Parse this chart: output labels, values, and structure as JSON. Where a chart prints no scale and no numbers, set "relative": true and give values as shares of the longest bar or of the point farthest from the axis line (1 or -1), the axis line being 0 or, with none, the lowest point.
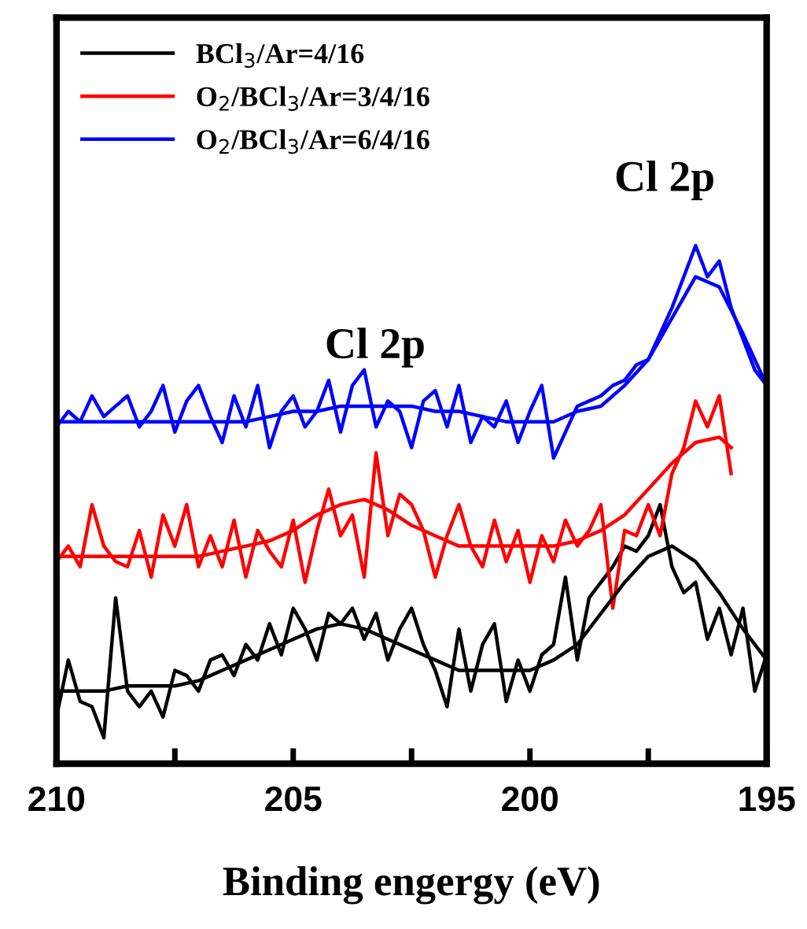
{
  "chart_data": {
    "type": "line",
    "relative": true,
    "xlabel": "Binding engergy (eV)",
    "xlim": [
      210,
      195
    ],
    "xticks": [
      210,
      {
        "value": 207.5,
        "label": null
      },
      205,
      {
        "value": 202.5,
        "label": null
      },
      200,
      {
        "value": 197.5,
        "label": null
      },
      195
    ],
    "tick_labels": "x",
    "legend": "top left",
    "grid": false,
    "marker": "none",
    "line_style": "solid",
    "annotations": [
      {
        "text": "Cl 2p",
        "x": 203.5,
        "y": 0.69
      },
      {
        "text": "Cl 2p",
        "x": 196.6,
        "y": 1.0
      }
    ],
    "x": [
      210,
      209.75,
      209.5,
      209.25,
      209,
      208.75,
      208.5,
      208.25,
      208,
      207.75,
      207.5,
      207.25,
      207,
      206.75,
      206.5,
      206.25,
      206,
      205.75,
      205.5,
      205.25,
      205,
      204.75,
      204.5,
      204.25,
      204,
      203.75,
      203.5,
      203.25,
      203,
      202.75,
      202.5,
      202.25,
      202,
      201.75,
      201.5,
      201.25,
      201,
      200.75,
      200.5,
      200.25,
      200,
      199.75,
      199.5,
      199.25,
      199,
      198.75,
      198.5,
      198.25,
      198,
      197.75,
      197.5,
      197.25,
      197,
      196.75,
      196.5,
      196.25,
      196,
      195.75,
      195.5,
      195.25,
      195
    ],
    "series": [
      {
        "name": "BCl$_{3}$/Ar=4/16",
        "color": "#000000",
        "values": [
          0.09,
          0.2,
          0.12,
          0.11,
          0.05,
          0.32,
          0.14,
          0.11,
          0.14,
          0.09,
          0.18,
          0.17,
          0.14,
          0.2,
          0.21,
          0.17,
          0.23,
          0.2,
          0.27,
          0.21,
          0.3,
          0.26,
          0.2,
          0.29,
          0.27,
          0.3,
          0.24,
          0.29,
          0.2,
          0.26,
          0.3,
          0.23,
          0.18,
          0.11,
          0.26,
          0.14,
          0.23,
          0.27,
          0.12,
          0.2,
          0.14,
          0.21,
          0.23,
          0.36,
          0.2,
          0.32,
          0.35,
          0.38,
          0.42,
          0.41,
          0.44,
          0.5,
          0.38,
          0.33,
          0.35,
          0.24,
          0.3,
          0.21,
          0.3,
          0.14,
          0.21
        ]
      },
      {
        "name": "O$_{2}$/BCl$_{3}$/Ar=3/4/16",
        "color": "#ff0000",
        "x": [
          210,
          209.75,
          209.5,
          209.25,
          209,
          208.75,
          208.5,
          208.25,
          208,
          207.75,
          207.5,
          207.25,
          207,
          206.75,
          206.5,
          206.25,
          206,
          205.75,
          205.5,
          205.25,
          205,
          204.75,
          204.5,
          204.25,
          204,
          203.75,
          203.5,
          203.25,
          203,
          202.75,
          202.5,
          202.25,
          202,
          201.75,
          201.5,
          201.25,
          201,
          200.75,
          200.5,
          200.25,
          200,
          199.75,
          199.5,
          199.25,
          199,
          198.75,
          198.5,
          198.25,
          198,
          197.75,
          197.5,
          197.25,
          197,
          196.75,
          196.5,
          196.25,
          196,
          195.75
        ],
        "values": [
          0.39,
          0.42,
          0.38,
          0.5,
          0.42,
          0.39,
          0.38,
          0.45,
          0.36,
          0.48,
          0.42,
          0.5,
          0.38,
          0.44,
          0.38,
          0.47,
          0.36,
          0.45,
          0.41,
          0.38,
          0.47,
          0.35,
          0.45,
          0.53,
          0.44,
          0.48,
          0.36,
          0.6,
          0.44,
          0.52,
          0.5,
          0.45,
          0.36,
          0.44,
          0.5,
          0.42,
          0.38,
          0.47,
          0.39,
          0.45,
          0.35,
          0.44,
          0.39,
          0.47,
          0.42,
          0.45,
          0.5,
          0.3,
          0.45,
          0.44,
          0.5,
          0.44,
          0.56,
          0.61,
          0.7,
          0.65,
          0.71,
          0.56
        ]
      },
      {
        "name": "O$_{2}$/BCl$_{3}$/Ar=6/4/16",
        "color": "#0000ff",
        "values": [
          0.65,
          0.68,
          0.66,
          0.71,
          0.67,
          0.69,
          0.71,
          0.65,
          0.68,
          0.73,
          0.64,
          0.7,
          0.73,
          0.67,
          0.62,
          0.71,
          0.65,
          0.73,
          0.61,
          0.68,
          0.71,
          0.65,
          0.68,
          0.74,
          0.64,
          0.73,
          0.76,
          0.65,
          0.7,
          0.68,
          0.61,
          0.7,
          0.72,
          0.65,
          0.73,
          0.62,
          0.67,
          0.65,
          0.7,
          0.62,
          0.68,
          0.73,
          0.59,
          0.64,
          0.69,
          0.7,
          0.71,
          0.73,
          0.74,
          0.77,
          0.78,
          0.83,
          0.88,
          0.94,
          1.0,
          0.94,
          0.97,
          0.88,
          0.82,
          0.76,
          0.73
        ]
      },
      {
        "color": "#000000",
        "x": [
          210,
          209.5,
          209,
          208.5,
          208,
          207.5,
          207,
          206.5,
          206,
          205.5,
          205,
          204.5,
          204,
          203.5,
          203,
          202.5,
          202,
          201.5,
          201,
          200.5,
          200,
          199.5,
          199,
          198.5,
          198,
          197.5,
          197,
          196.5,
          196,
          195.5,
          195
        ],
        "values": [
          0.14,
          0.14,
          0.14,
          0.15,
          0.15,
          0.15,
          0.16,
          0.18,
          0.2,
          0.22,
          0.24,
          0.26,
          0.27,
          0.26,
          0.24,
          0.22,
          0.2,
          0.18,
          0.18,
          0.18,
          0.18,
          0.2,
          0.23,
          0.29,
          0.35,
          0.4,
          0.42,
          0.39,
          0.33,
          0.26,
          0.2
        ]
      },
      {
        "color": "#ff0000",
        "x": [
          210,
          209.5,
          209,
          208.5,
          208,
          207.5,
          207,
          206.5,
          206,
          205.5,
          205,
          204.5,
          204,
          203.5,
          203,
          202.5,
          202,
          201.5,
          201,
          200.5,
          200,
          199.5,
          199,
          198.5,
          198,
          197.5,
          197,
          196.5,
          196,
          195.75
        ],
        "values": [
          0.4,
          0.4,
          0.4,
          0.4,
          0.4,
          0.4,
          0.4,
          0.41,
          0.42,
          0.43,
          0.45,
          0.48,
          0.5,
          0.51,
          0.49,
          0.46,
          0.44,
          0.42,
          0.42,
          0.42,
          0.42,
          0.42,
          0.43,
          0.45,
          0.48,
          0.53,
          0.58,
          0.62,
          0.63,
          0.61
        ]
      },
      {
        "color": "#0000ff",
        "x": [
          210,
          209.5,
          209,
          208.5,
          208,
          207.5,
          207,
          206.5,
          206,
          205.5,
          205,
          204.5,
          204,
          203.5,
          203,
          202.5,
          202,
          201.5,
          201,
          200.5,
          200,
          199.5,
          199,
          198.5,
          198,
          197.5,
          197,
          196.5,
          196,
          195.5,
          195
        ],
        "values": [
          0.66,
          0.66,
          0.66,
          0.66,
          0.66,
          0.66,
          0.66,
          0.66,
          0.66,
          0.67,
          0.68,
          0.68,
          0.69,
          0.69,
          0.69,
          0.69,
          0.68,
          0.68,
          0.67,
          0.66,
          0.66,
          0.66,
          0.68,
          0.69,
          0.73,
          0.78,
          0.86,
          0.94,
          0.92,
          0.83,
          0.73
        ]
      }
    ]
  }
}
